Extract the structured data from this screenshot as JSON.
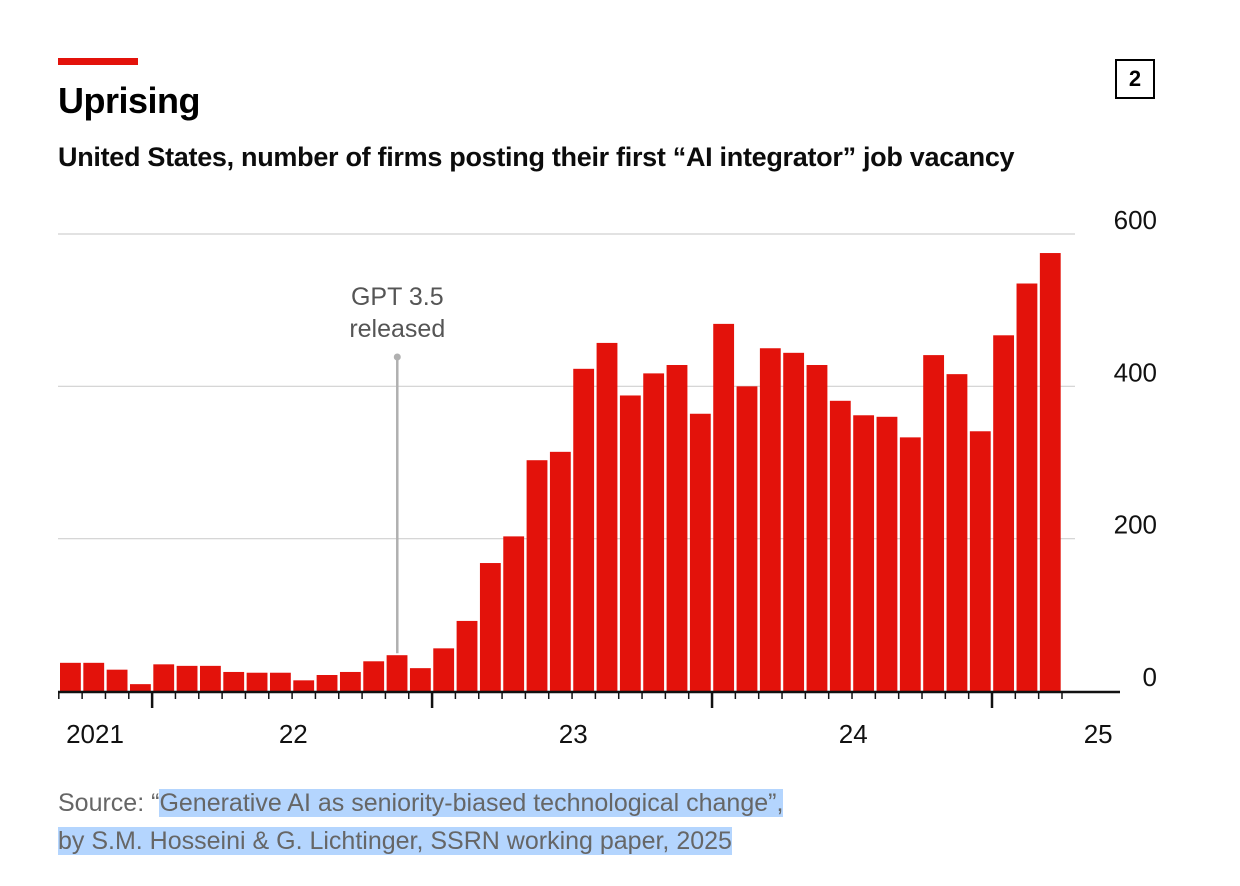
{
  "title": "Uprising",
  "subtitle": "United States, number of firms posting their first “AI integrator” job vacancy",
  "chart_number": "2",
  "source_prefix": "Source: “",
  "source_line1_rest": "Generative AI as seniority-biased technological change”,",
  "source_line2": "by S.M. Hosseini & G. Lichtinger, SSRN working paper, 2025",
  "colors": {
    "bar": "#e3120b",
    "accent": "#e3120b",
    "grid": "#d0d0d0",
    "annotation": "#b0b0b0"
  },
  "chart_data": {
    "type": "bar",
    "title": "United States, number of firms posting their first “AI integrator” job vacancy",
    "xlabel": "",
    "ylabel": "",
    "ylim": [
      0,
      600
    ],
    "yticks": [
      "0",
      "200",
      "400",
      "600"
    ],
    "ytick_values": [
      0,
      200,
      400,
      600
    ],
    "grid": true,
    "x_labels": [
      {
        "label": "2021",
        "month_index": 1.5
      },
      {
        "label": "22",
        "month_index": 10
      },
      {
        "label": "23",
        "month_index": 22
      },
      {
        "label": "24",
        "month_index": 34
      },
      {
        "label": "25",
        "month_index": 44.5
      }
    ],
    "year_boundaries": [
      4,
      16,
      28,
      40
    ],
    "categories": [
      "2021-09",
      "2021-10",
      "2021-11",
      "2021-12",
      "2022-01",
      "2022-02",
      "2022-03",
      "2022-04",
      "2022-05",
      "2022-06",
      "2022-07",
      "2022-08",
      "2022-09",
      "2022-10",
      "2022-11",
      "2022-12",
      "2023-01",
      "2023-02",
      "2023-03",
      "2023-04",
      "2023-05",
      "2023-06",
      "2023-07",
      "2023-08",
      "2023-09",
      "2023-10",
      "2023-11",
      "2023-12",
      "2024-01",
      "2024-02",
      "2024-03",
      "2024-04",
      "2024-05",
      "2024-06",
      "2024-07",
      "2024-08",
      "2024-09",
      "2024-10",
      "2024-11",
      "2024-12",
      "2025-01",
      "2025-02",
      "2025-03"
    ],
    "values": [
      37,
      37,
      28,
      9,
      35,
      33,
      33,
      25,
      24,
      24,
      14,
      21,
      25,
      39,
      47,
      30,
      56,
      92,
      168,
      203,
      303,
      314,
      423,
      457,
      388,
      417,
      428,
      364,
      482,
      400,
      450,
      444,
      428,
      381,
      362,
      360,
      333,
      441,
      416,
      341,
      467,
      535,
      575
    ],
    "annotations": [
      {
        "text_line1": "GPT 3.5",
        "text_line2": "released",
        "month_index": 14
      }
    ]
  }
}
